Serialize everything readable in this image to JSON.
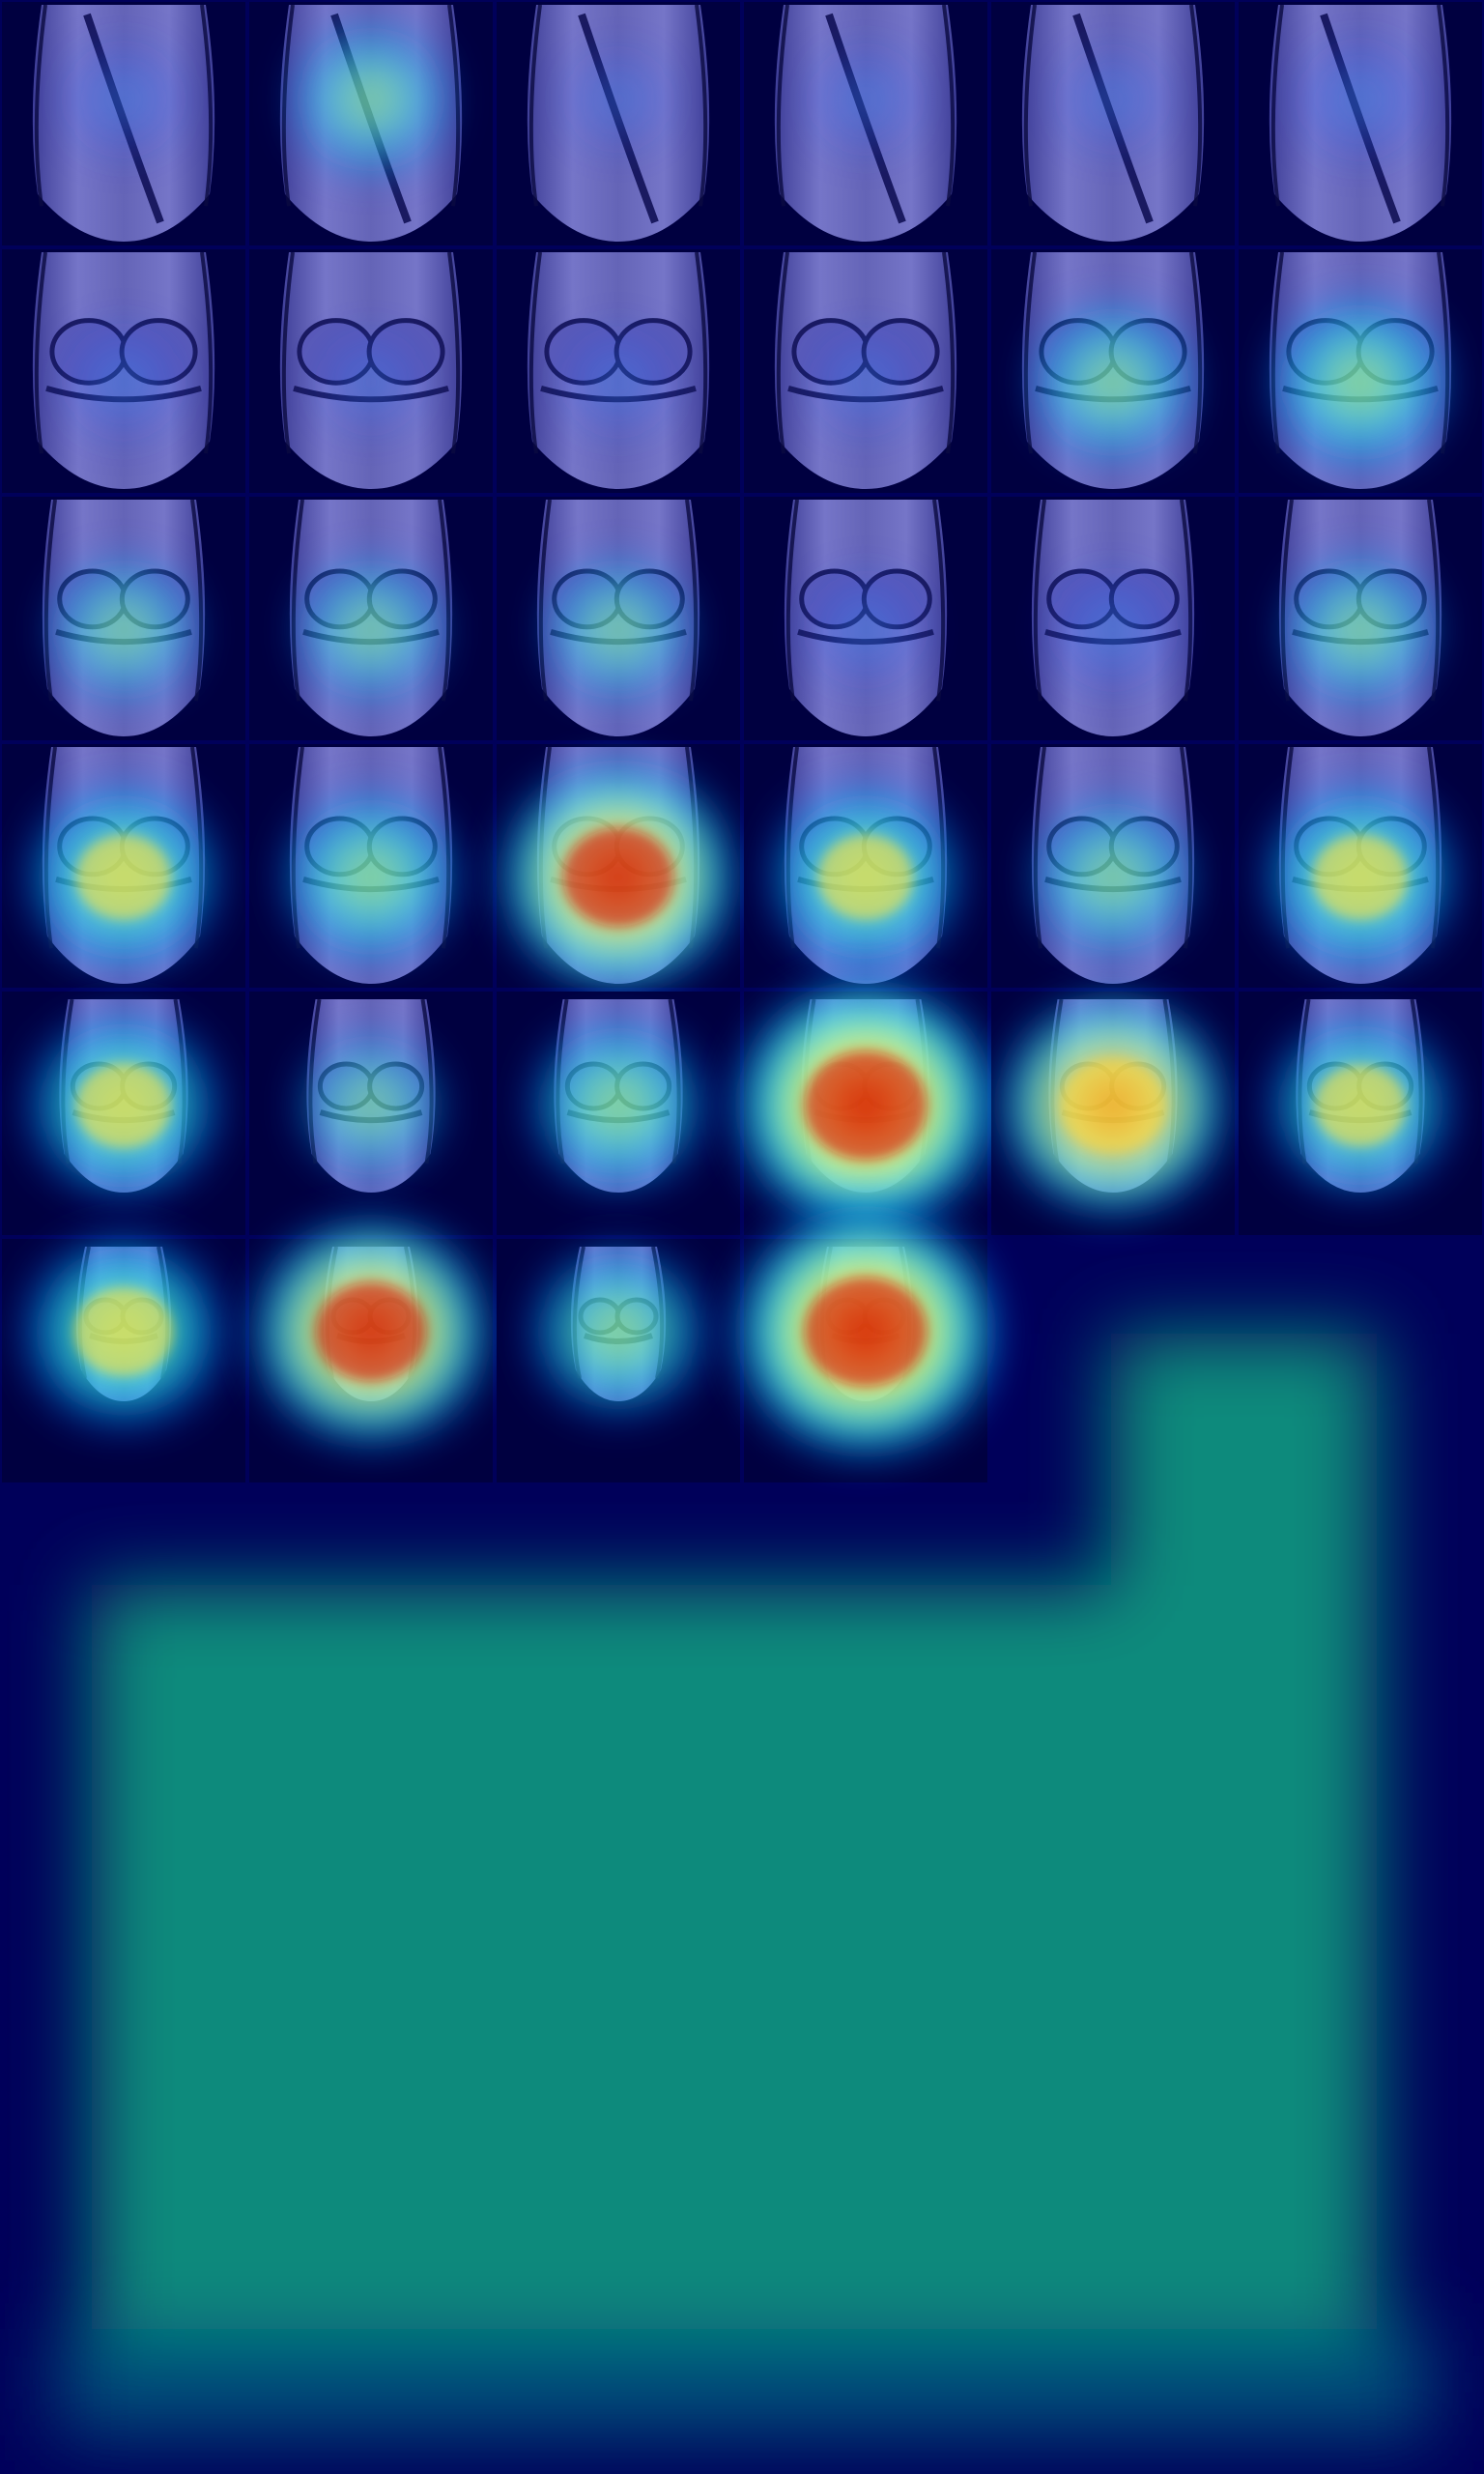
{
  "image": {
    "kind": "mri-slice-montage-with-heatmap-overlay",
    "background_color": "#00005a",
    "grid": {
      "columns": 6,
      "rows": 6,
      "filled_cells": 34
    },
    "colormap": [
      "#00007f",
      "#0000ff",
      "#00bfff",
      "#40ffbf",
      "#ffff40",
      "#ff8000",
      "#c00000"
    ],
    "empty_region_color": "#0a8a7c",
    "slices": [
      {
        "index": 1,
        "anatomy": "peripheral",
        "heat": 0.15
      },
      {
        "index": 2,
        "anatomy": "peripheral",
        "heat": 0.35
      },
      {
        "index": 3,
        "anatomy": "peripheral",
        "heat": 0.05
      },
      {
        "index": 4,
        "anatomy": "peripheral",
        "heat": 0.1
      },
      {
        "index": 5,
        "anatomy": "peripheral",
        "heat": 0.08
      },
      {
        "index": 6,
        "anatomy": "peripheral",
        "heat": 0.2
      },
      {
        "index": 7,
        "anatomy": "condyles",
        "heat": 0.15
      },
      {
        "index": 8,
        "anatomy": "condyles",
        "heat": 0.05
      },
      {
        "index": 9,
        "anatomy": "condyles",
        "heat": 0.1
      },
      {
        "index": 10,
        "anatomy": "condyles",
        "heat": 0.08
      },
      {
        "index": 11,
        "anatomy": "condyles",
        "heat": 0.4
      },
      {
        "index": 12,
        "anatomy": "condyles",
        "heat": 0.5
      },
      {
        "index": 13,
        "anatomy": "joint",
        "heat": 0.3
      },
      {
        "index": 14,
        "anatomy": "joint",
        "heat": 0.3
      },
      {
        "index": 15,
        "anatomy": "joint",
        "heat": 0.3
      },
      {
        "index": 16,
        "anatomy": "joint",
        "heat": 0.15
      },
      {
        "index": 17,
        "anatomy": "joint",
        "heat": 0.2
      },
      {
        "index": 18,
        "anatomy": "joint",
        "heat": 0.35
      },
      {
        "index": 19,
        "anatomy": "joint",
        "heat": 0.6
      },
      {
        "index": 20,
        "anatomy": "joint",
        "heat": 0.5
      },
      {
        "index": 21,
        "anatomy": "joint",
        "heat": 0.8
      },
      {
        "index": 22,
        "anatomy": "joint",
        "heat": 0.6
      },
      {
        "index": 23,
        "anatomy": "joint",
        "heat": 0.4
      },
      {
        "index": 24,
        "anatomy": "joint",
        "heat": 0.6
      },
      {
        "index": 25,
        "anatomy": "posterior",
        "heat": 0.6
      },
      {
        "index": 26,
        "anatomy": "posterior",
        "heat": 0.3
      },
      {
        "index": 27,
        "anatomy": "posterior",
        "heat": 0.5
      },
      {
        "index": 28,
        "anatomy": "posterior",
        "heat": 0.95
      },
      {
        "index": 29,
        "anatomy": "posterior",
        "heat": 0.75
      },
      {
        "index": 30,
        "anatomy": "posterior",
        "heat": 0.55
      },
      {
        "index": 31,
        "anatomy": "posterior-small",
        "heat": 0.65
      },
      {
        "index": 32,
        "anatomy": "posterior-small",
        "heat": 0.8
      },
      {
        "index": 33,
        "anatomy": "posterior-small",
        "heat": 0.5
      },
      {
        "index": 34,
        "anatomy": "posterior-small",
        "heat": 0.95
      }
    ]
  }
}
